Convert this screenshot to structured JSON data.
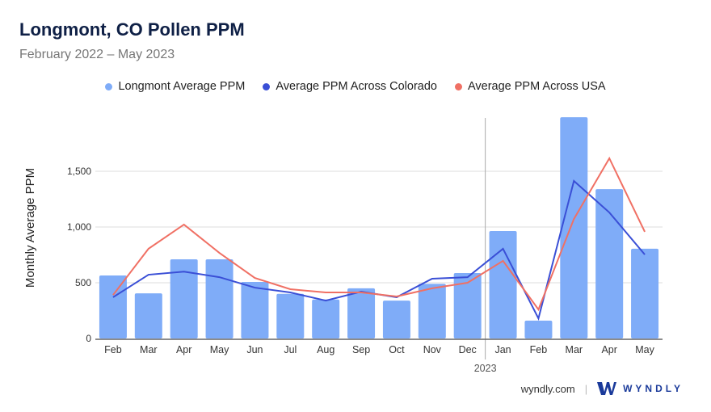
{
  "header": {
    "title": "Longmont, CO Pollen PPM",
    "subtitle": "February 2022 – May 2023"
  },
  "footer": {
    "site": "wyndly.com",
    "brand": "WYNDLY"
  },
  "colors": {
    "bar": "#7facf8",
    "colorado": "#3a4fd6",
    "usa": "#f07064",
    "grid": "#dddddd"
  },
  "chart_data": {
    "type": "bar",
    "title": "Longmont, CO Pollen PPM",
    "ylabel": "Monthly Average PPM",
    "xlabel": "",
    "ylim": [
      0,
      2000
    ],
    "yticks": [
      0,
      500,
      1000,
      1500
    ],
    "ytick_labels": [
      "0",
      "500",
      "1,000",
      "1,500"
    ],
    "categories": [
      "Feb",
      "Mar",
      "Apr",
      "May",
      "Jun",
      "Jul",
      "Aug",
      "Sep",
      "Oct",
      "Nov",
      "Dec",
      "Jan",
      "Feb",
      "Mar",
      "Apr",
      "May"
    ],
    "year_marker": {
      "label": "2023",
      "before_index": 11
    },
    "legend_position": "top",
    "series": [
      {
        "name": "Longmont Average PPM",
        "type": "bar",
        "values": [
          565,
          405,
          710,
          710,
          507,
          400,
          350,
          450,
          340,
          490,
          587,
          964,
          160,
          1985,
          1340,
          805
        ]
      },
      {
        "name": "Average PPM Across Colorado",
        "type": "line",
        "values": [
          370,
          572,
          600,
          550,
          456,
          413,
          340,
          420,
          370,
          536,
          550,
          805,
          180,
          1413,
          1130,
          753
        ]
      },
      {
        "name": "Average PPM Across USA",
        "type": "line",
        "values": [
          390,
          805,
          1022,
          768,
          543,
          442,
          413,
          413,
          377,
          450,
          500,
          696,
          260,
          1072,
          1616,
          957
        ]
      }
    ]
  }
}
